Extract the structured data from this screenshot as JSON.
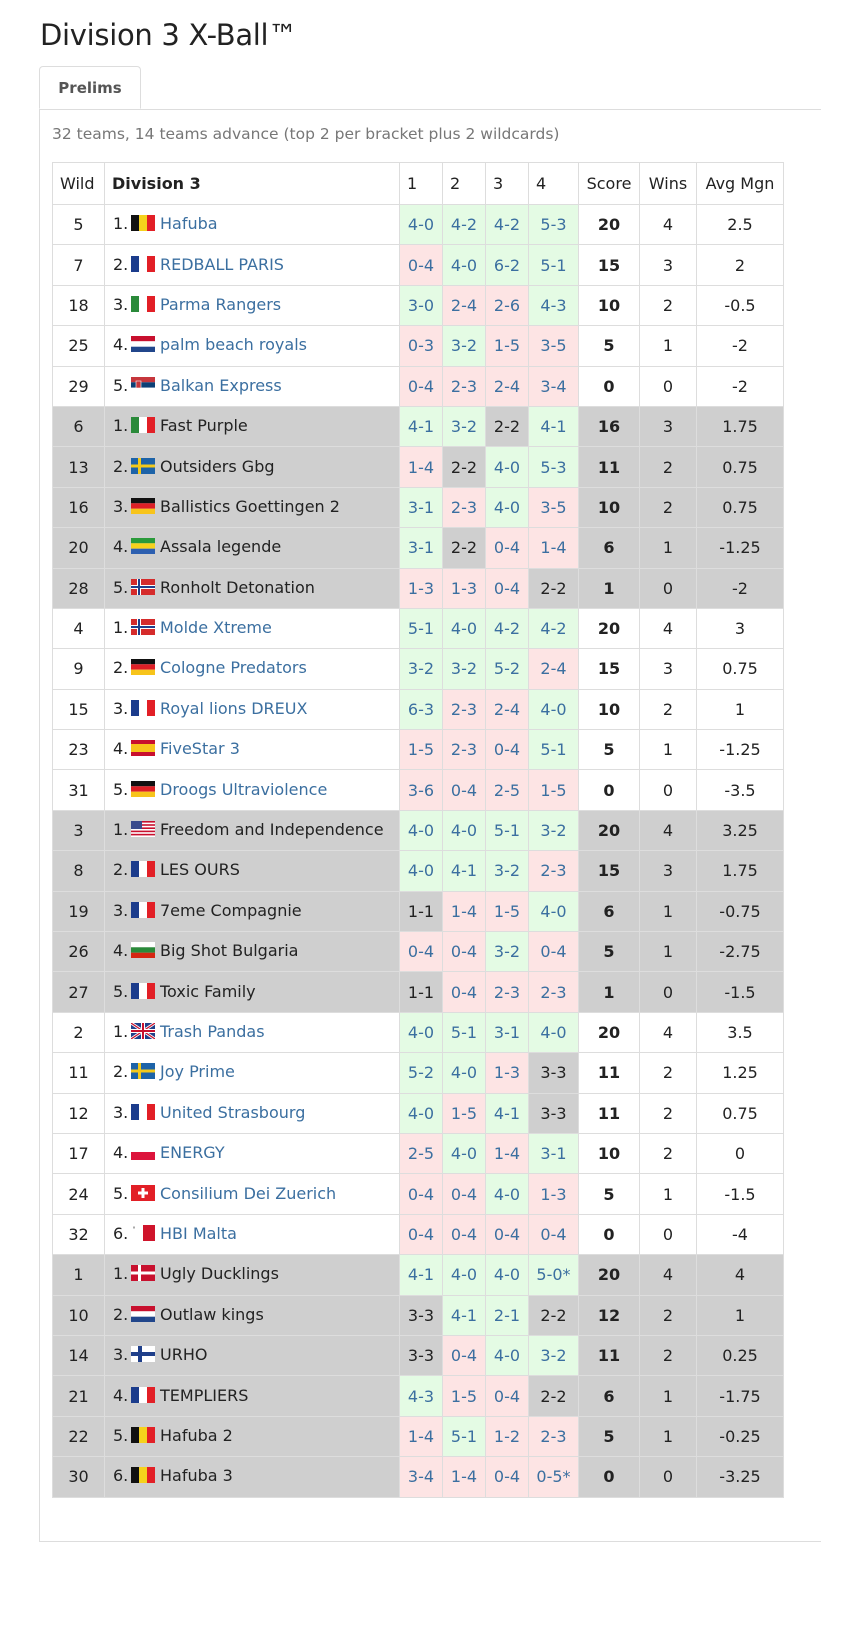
{
  "title": "Division 3 X-Ball™",
  "tabs": [
    {
      "label": "Prelims",
      "active": true
    }
  ],
  "summary": "32 teams, 14 teams advance (top 2 per bracket plus 2 wildcards)",
  "columns": {
    "wild": "Wild",
    "division": "Division 3",
    "g1": "1",
    "g2": "2",
    "g3": "3",
    "g4": "4",
    "score": "Score",
    "wins": "Wins",
    "avg": "Avg Mgn"
  },
  "colors": {
    "link": "#3b6fa0",
    "win_bg": "#e4fbe4",
    "loss_bg": "#fde4e4",
    "draw_bg": "#cfcfcf",
    "grey_bracket_bg": "#cfcfcf"
  },
  "brackets": [
    {
      "shaded": false,
      "teams": [
        {
          "wild": "5",
          "rank": "1.",
          "flag": "belgium-flag",
          "name": "Hafuba",
          "link": true,
          "games": [
            [
              "4-0",
              "w"
            ],
            [
              "4-2",
              "w"
            ],
            [
              "4-2",
              "w"
            ],
            [
              "5-3",
              "w"
            ]
          ],
          "score": "20",
          "wins": "4",
          "avg": "2.5"
        },
        {
          "wild": "7",
          "rank": "2.",
          "flag": "france-flag",
          "name": "REDBALL PARIS",
          "link": true,
          "games": [
            [
              "0-4",
              "l"
            ],
            [
              "4-0",
              "w"
            ],
            [
              "6-2",
              "w"
            ],
            [
              "5-1",
              "w"
            ]
          ],
          "score": "15",
          "wins": "3",
          "avg": "2"
        },
        {
          "wild": "18",
          "rank": "3.",
          "flag": "italy-flag",
          "name": "Parma Rangers",
          "link": true,
          "games": [
            [
              "3-0",
              "w"
            ],
            [
              "2-4",
              "l"
            ],
            [
              "2-6",
              "l"
            ],
            [
              "4-3",
              "w"
            ]
          ],
          "score": "10",
          "wins": "2",
          "avg": "-0.5"
        },
        {
          "wild": "25",
          "rank": "4.",
          "flag": "netherlands-flag",
          "name": "palm beach royals",
          "link": true,
          "games": [
            [
              "0-3",
              "l"
            ],
            [
              "3-2",
              "w"
            ],
            [
              "1-5",
              "l"
            ],
            [
              "3-5",
              "l"
            ]
          ],
          "score": "5",
          "wins": "1",
          "avg": "-2"
        },
        {
          "wild": "29",
          "rank": "5.",
          "flag": "serbia-flag",
          "name": "Balkan Express",
          "link": true,
          "games": [
            [
              "0-4",
              "l"
            ],
            [
              "2-3",
              "l"
            ],
            [
              "2-4",
              "l"
            ],
            [
              "3-4",
              "l"
            ]
          ],
          "score": "0",
          "wins": "0",
          "avg": "-2"
        }
      ]
    },
    {
      "shaded": true,
      "teams": [
        {
          "wild": "6",
          "rank": "1.",
          "flag": "italy-flag",
          "name": "Fast Purple",
          "link": false,
          "games": [
            [
              "4-1",
              "w"
            ],
            [
              "3-2",
              "w"
            ],
            [
              "2-2",
              "d"
            ],
            [
              "4-1",
              "w"
            ]
          ],
          "score": "16",
          "wins": "3",
          "avg": "1.75"
        },
        {
          "wild": "13",
          "rank": "2.",
          "flag": "sweden-flag",
          "name": "Outsiders Gbg",
          "link": false,
          "games": [
            [
              "1-4",
              "l"
            ],
            [
              "2-2",
              "d"
            ],
            [
              "4-0",
              "w"
            ],
            [
              "5-3",
              "w"
            ]
          ],
          "score": "11",
          "wins": "2",
          "avg": "0.75"
        },
        {
          "wild": "16",
          "rank": "3.",
          "flag": "germany-flag",
          "name": "Ballistics Goettingen 2",
          "link": false,
          "games": [
            [
              "3-1",
              "w"
            ],
            [
              "2-3",
              "l"
            ],
            [
              "4-0",
              "w"
            ],
            [
              "3-5",
              "l"
            ]
          ],
          "score": "10",
          "wins": "2",
          "avg": "0.75"
        },
        {
          "wild": "20",
          "rank": "4.",
          "flag": "gabon-flag",
          "name": "Assala legende",
          "link": false,
          "games": [
            [
              "3-1",
              "w"
            ],
            [
              "2-2",
              "d"
            ],
            [
              "0-4",
              "l"
            ],
            [
              "1-4",
              "l"
            ]
          ],
          "score": "6",
          "wins": "1",
          "avg": "-1.25"
        },
        {
          "wild": "28",
          "rank": "5.",
          "flag": "norway-flag",
          "name": "Ronholt Detonation",
          "link": false,
          "games": [
            [
              "1-3",
              "l"
            ],
            [
              "1-3",
              "l"
            ],
            [
              "0-4",
              "l"
            ],
            [
              "2-2",
              "d"
            ]
          ],
          "score": "1",
          "wins": "0",
          "avg": "-2"
        }
      ]
    },
    {
      "shaded": false,
      "teams": [
        {
          "wild": "4",
          "rank": "1.",
          "flag": "norway-flag",
          "name": "Molde Xtreme",
          "link": true,
          "games": [
            [
              "5-1",
              "w"
            ],
            [
              "4-0",
              "w"
            ],
            [
              "4-2",
              "w"
            ],
            [
              "4-2",
              "w"
            ]
          ],
          "score": "20",
          "wins": "4",
          "avg": "3"
        },
        {
          "wild": "9",
          "rank": "2.",
          "flag": "germany-flag",
          "name": "Cologne Predators",
          "link": true,
          "games": [
            [
              "3-2",
              "w"
            ],
            [
              "3-2",
              "w"
            ],
            [
              "5-2",
              "w"
            ],
            [
              "2-4",
              "l"
            ]
          ],
          "score": "15",
          "wins": "3",
          "avg": "0.75"
        },
        {
          "wild": "15",
          "rank": "3.",
          "flag": "france-flag",
          "name": "Royal lions DREUX",
          "link": true,
          "games": [
            [
              "6-3",
              "w"
            ],
            [
              "2-3",
              "l"
            ],
            [
              "2-4",
              "l"
            ],
            [
              "4-0",
              "w"
            ]
          ],
          "score": "10",
          "wins": "2",
          "avg": "1"
        },
        {
          "wild": "23",
          "rank": "4.",
          "flag": "spain-flag",
          "name": "FiveStar 3",
          "link": true,
          "games": [
            [
              "1-5",
              "l"
            ],
            [
              "2-3",
              "l"
            ],
            [
              "0-4",
              "l"
            ],
            [
              "5-1",
              "w"
            ]
          ],
          "score": "5",
          "wins": "1",
          "avg": "-1.25"
        },
        {
          "wild": "31",
          "rank": "5.",
          "flag": "germany-flag",
          "name": "Droogs Ultraviolence",
          "link": true,
          "games": [
            [
              "3-6",
              "l"
            ],
            [
              "0-4",
              "l"
            ],
            [
              "2-5",
              "l"
            ],
            [
              "1-5",
              "l"
            ]
          ],
          "score": "0",
          "wins": "0",
          "avg": "-3.5"
        }
      ]
    },
    {
      "shaded": true,
      "teams": [
        {
          "wild": "3",
          "rank": "1.",
          "flag": "usa-flag",
          "name": "Freedom and Independence",
          "link": false,
          "games": [
            [
              "4-0",
              "w"
            ],
            [
              "4-0",
              "w"
            ],
            [
              "5-1",
              "w"
            ],
            [
              "3-2",
              "w"
            ]
          ],
          "score": "20",
          "wins": "4",
          "avg": "3.25"
        },
        {
          "wild": "8",
          "rank": "2.",
          "flag": "france-flag",
          "name": "LES OURS",
          "link": false,
          "games": [
            [
              "4-0",
              "w"
            ],
            [
              "4-1",
              "w"
            ],
            [
              "3-2",
              "w"
            ],
            [
              "2-3",
              "l"
            ]
          ],
          "score": "15",
          "wins": "3",
          "avg": "1.75"
        },
        {
          "wild": "19",
          "rank": "3.",
          "flag": "france-flag",
          "name": "7eme Compagnie",
          "link": false,
          "games": [
            [
              "1-1",
              "d"
            ],
            [
              "1-4",
              "l"
            ],
            [
              "1-5",
              "l"
            ],
            [
              "4-0",
              "w"
            ]
          ],
          "score": "6",
          "wins": "1",
          "avg": "-0.75"
        },
        {
          "wild": "26",
          "rank": "4.",
          "flag": "bulgaria-flag",
          "name": "Big Shot Bulgaria",
          "link": false,
          "games": [
            [
              "0-4",
              "l"
            ],
            [
              "0-4",
              "l"
            ],
            [
              "3-2",
              "w"
            ],
            [
              "0-4",
              "l"
            ]
          ],
          "score": "5",
          "wins": "1",
          "avg": "-2.75"
        },
        {
          "wild": "27",
          "rank": "5.",
          "flag": "france-flag",
          "name": "Toxic Family",
          "link": false,
          "games": [
            [
              "1-1",
              "d"
            ],
            [
              "0-4",
              "l"
            ],
            [
              "2-3",
              "l"
            ],
            [
              "2-3",
              "l"
            ]
          ],
          "score": "1",
          "wins": "0",
          "avg": "-1.5"
        }
      ]
    },
    {
      "shaded": false,
      "teams": [
        {
          "wild": "2",
          "rank": "1.",
          "flag": "uk-flag",
          "name": "Trash Pandas",
          "link": true,
          "games": [
            [
              "4-0",
              "w"
            ],
            [
              "5-1",
              "w"
            ],
            [
              "3-1",
              "w"
            ],
            [
              "4-0",
              "w"
            ]
          ],
          "score": "20",
          "wins": "4",
          "avg": "3.5"
        },
        {
          "wild": "11",
          "rank": "2.",
          "flag": "sweden-flag",
          "name": "Joy Prime",
          "link": true,
          "games": [
            [
              "5-2",
              "w"
            ],
            [
              "4-0",
              "w"
            ],
            [
              "1-3",
              "l"
            ],
            [
              "3-3",
              "d"
            ]
          ],
          "score": "11",
          "wins": "2",
          "avg": "1.25"
        },
        {
          "wild": "12",
          "rank": "3.",
          "flag": "france-flag",
          "name": "United Strasbourg",
          "link": true,
          "games": [
            [
              "4-0",
              "w"
            ],
            [
              "1-5",
              "l"
            ],
            [
              "4-1",
              "w"
            ],
            [
              "3-3",
              "d"
            ]
          ],
          "score": "11",
          "wins": "2",
          "avg": "0.75"
        },
        {
          "wild": "17",
          "rank": "4.",
          "flag": "poland-flag",
          "name": "ENERGY",
          "link": true,
          "games": [
            [
              "2-5",
              "l"
            ],
            [
              "4-0",
              "w"
            ],
            [
              "1-4",
              "l"
            ],
            [
              "3-1",
              "w"
            ]
          ],
          "score": "10",
          "wins": "2",
          "avg": "0"
        },
        {
          "wild": "24",
          "rank": "5.",
          "flag": "switzerland-flag",
          "name": "Consilium Dei Zuerich",
          "link": true,
          "games": [
            [
              "0-4",
              "l"
            ],
            [
              "0-4",
              "l"
            ],
            [
              "4-0",
              "w"
            ],
            [
              "1-3",
              "l"
            ]
          ],
          "score": "5",
          "wins": "1",
          "avg": "-1.5"
        },
        {
          "wild": "32",
          "rank": "6.",
          "flag": "malta-flag",
          "name": "HBI Malta",
          "link": true,
          "games": [
            [
              "0-4",
              "l"
            ],
            [
              "0-4",
              "l"
            ],
            [
              "0-4",
              "l"
            ],
            [
              "0-4",
              "l"
            ]
          ],
          "score": "0",
          "wins": "0",
          "avg": "-4"
        }
      ]
    },
    {
      "shaded": true,
      "teams": [
        {
          "wild": "1",
          "rank": "1.",
          "flag": "denmark-flag",
          "name": "Ugly Ducklings",
          "link": false,
          "games": [
            [
              "4-1",
              "w"
            ],
            [
              "4-0",
              "w"
            ],
            [
              "4-0",
              "w"
            ],
            [
              "5-0*",
              "w"
            ]
          ],
          "score": "20",
          "wins": "4",
          "avg": "4"
        },
        {
          "wild": "10",
          "rank": "2.",
          "flag": "netherlands-flag",
          "name": "Outlaw kings",
          "link": false,
          "games": [
            [
              "3-3",
              "d"
            ],
            [
              "4-1",
              "w"
            ],
            [
              "2-1",
              "w"
            ],
            [
              "2-2",
              "d"
            ]
          ],
          "score": "12",
          "wins": "2",
          "avg": "1"
        },
        {
          "wild": "14",
          "rank": "3.",
          "flag": "finland-flag",
          "name": "URHO",
          "link": false,
          "games": [
            [
              "3-3",
              "d"
            ],
            [
              "0-4",
              "l"
            ],
            [
              "4-0",
              "w"
            ],
            [
              "3-2",
              "w"
            ]
          ],
          "score": "11",
          "wins": "2",
          "avg": "0.25"
        },
        {
          "wild": "21",
          "rank": "4.",
          "flag": "france-flag",
          "name": "TEMPLIERS",
          "link": false,
          "games": [
            [
              "4-3",
              "w"
            ],
            [
              "1-5",
              "l"
            ],
            [
              "0-4",
              "l"
            ],
            [
              "2-2",
              "d"
            ]
          ],
          "score": "6",
          "wins": "1",
          "avg": "-1.75"
        },
        {
          "wild": "22",
          "rank": "5.",
          "flag": "belgium-flag",
          "name": "Hafuba 2",
          "link": false,
          "games": [
            [
              "1-4",
              "l"
            ],
            [
              "5-1",
              "w"
            ],
            [
              "1-2",
              "l"
            ],
            [
              "2-3",
              "l"
            ]
          ],
          "score": "5",
          "wins": "1",
          "avg": "-0.25"
        },
        {
          "wild": "30",
          "rank": "6.",
          "flag": "belgium-flag",
          "name": "Hafuba 3",
          "link": false,
          "games": [
            [
              "3-4",
              "l"
            ],
            [
              "1-4",
              "l"
            ],
            [
              "0-4",
              "l"
            ],
            [
              "0-5*",
              "l"
            ]
          ],
          "score": "0",
          "wins": "0",
          "avg": "-3.25"
        }
      ]
    }
  ]
}
